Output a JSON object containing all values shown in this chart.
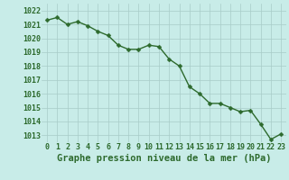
{
  "x": [
    0,
    1,
    2,
    3,
    4,
    5,
    6,
    7,
    8,
    9,
    10,
    11,
    12,
    13,
    14,
    15,
    16,
    17,
    18,
    19,
    20,
    21,
    22,
    23
  ],
  "y": [
    1021.3,
    1021.5,
    1021.0,
    1021.2,
    1020.9,
    1020.5,
    1020.2,
    1019.5,
    1019.2,
    1019.2,
    1019.5,
    1019.4,
    1018.5,
    1018.0,
    1016.5,
    1016.0,
    1015.3,
    1015.3,
    1015.0,
    1014.7,
    1014.8,
    1013.8,
    1012.7,
    1013.1
  ],
  "line_color": "#2d6a2d",
  "marker": "D",
  "marker_size": 2.5,
  "line_width": 1.0,
  "bg_color": "#c8ece8",
  "grid_color": "#a8ccc8",
  "xlabel": "Graphe pression niveau de la mer (hPa)",
  "xlabel_color": "#2d6a2d",
  "xlabel_fontsize": 7.5,
  "tick_color": "#2d6a2d",
  "tick_fontsize": 6,
  "ylim": [
    1012.5,
    1022.5
  ],
  "xlim": [
    -0.5,
    23.5
  ],
  "yticks": [
    1013,
    1014,
    1015,
    1016,
    1017,
    1018,
    1019,
    1020,
    1021,
    1022
  ],
  "xticks": [
    0,
    1,
    2,
    3,
    4,
    5,
    6,
    7,
    8,
    9,
    10,
    11,
    12,
    13,
    14,
    15,
    16,
    17,
    18,
    19,
    20,
    21,
    22,
    23
  ]
}
